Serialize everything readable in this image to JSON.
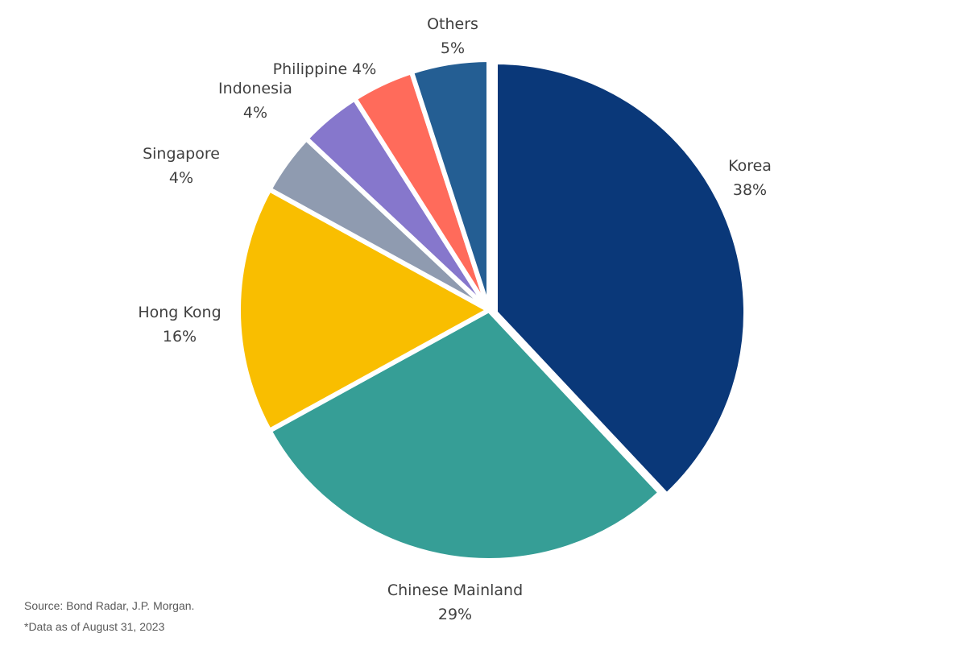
{
  "chart_data": {
    "type": "pie",
    "start": "12 o'clock",
    "direction": "clockwise",
    "slices": [
      {
        "label": "Korea",
        "value": 38,
        "display": "38%",
        "color": "#0a3879",
        "exploded": true
      },
      {
        "label": "Chinese Mainland",
        "value": 29,
        "display": "29%",
        "color": "#369e96"
      },
      {
        "label": "Hong Kong",
        "value": 16,
        "display": "16%",
        "color": "#f9be00"
      },
      {
        "label": "Singapore",
        "value": 4,
        "display": "4%",
        "color": "#8f9bb0"
      },
      {
        "label": "Indonesia",
        "value": 4,
        "display": "4%",
        "color": "#8677cc"
      },
      {
        "label": "Philippine",
        "value": 4,
        "display": "4%",
        "color": "#ff6b5b"
      },
      {
        "label": "Others",
        "value": 5,
        "display": "5%",
        "color": "#245e93"
      }
    ]
  },
  "footnotes": {
    "source": "Source: Bond Radar, J.P. Morgan.",
    "date": "*Data as of August 31, 2023"
  }
}
